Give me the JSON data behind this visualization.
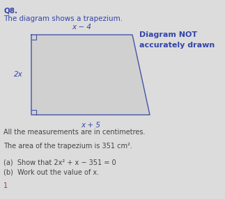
{
  "title_line1": "Q8.",
  "title_line2": "The diagram shows a trapezium.",
  "diagram_not_text1": "Diagram NOT",
  "diagram_not_text2": "accurately drawn",
  "label_top": "x − 4",
  "label_left": "2x",
  "label_bottom": "x + 5",
  "measurements_text": "All the measurements are in centimetres.",
  "area_text": "The area of the trapezium is 351 cm².",
  "part_a": "(a)  Show that 2x² + x − 351 = 0",
  "part_b": "(b)  Work out the value of x.",
  "bg_color": "#dcdcdc",
  "trap_fill": "#d0d0d0",
  "trap_edge": "#4455aa",
  "text_color": "#3344aa",
  "body_color": "#444444",
  "font_size_q": 7.5,
  "font_size_body": 7.0,
  "font_size_label": 7.5,
  "font_size_note": 8.0
}
